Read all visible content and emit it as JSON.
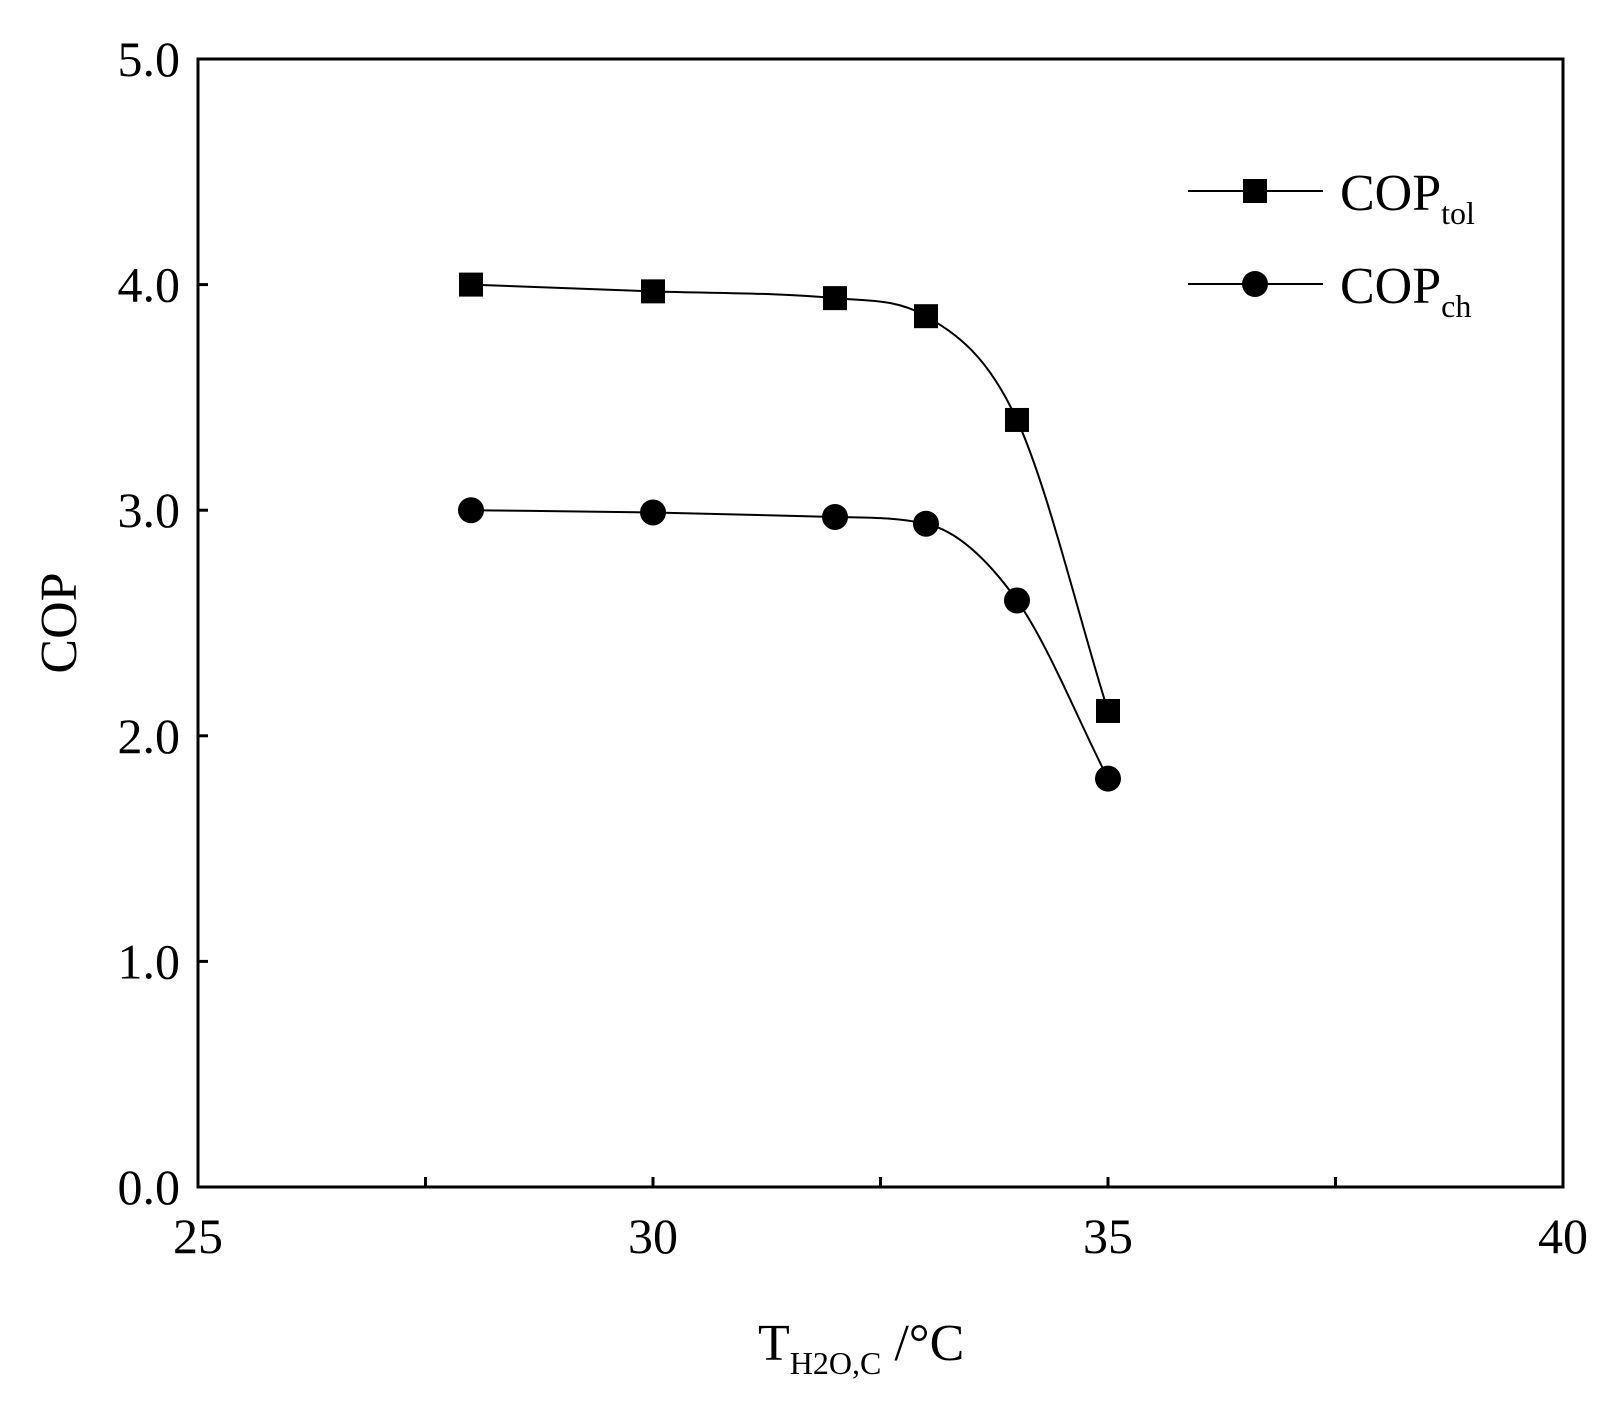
{
  "chart_data": {
    "type": "line",
    "title": "",
    "xlabel": {
      "main": "T",
      "subscript": "H2O,C",
      "suffix": " /°C"
    },
    "ylabel": "COP",
    "xlim": [
      25,
      40
    ],
    "ylim": [
      0,
      5
    ],
    "x_ticks": [
      "25",
      "30",
      "35",
      "40"
    ],
    "y_ticks": [
      "0.0",
      "1.0",
      "2.0",
      "3.0",
      "4.0",
      "5.0"
    ],
    "grid": false,
    "legend_position": "top-right",
    "series": [
      {
        "name": "COP_tol",
        "label_main": "COP",
        "label_sub": "tol",
        "marker": "square",
        "color": "#000000",
        "x": [
          28,
          30,
          32,
          33,
          34,
          35
        ],
        "y": [
          4.0,
          3.97,
          3.94,
          3.86,
          3.4,
          2.11
        ]
      },
      {
        "name": "COP_ch",
        "label_main": "COP",
        "label_sub": "ch",
        "marker": "circle",
        "color": "#000000",
        "x": [
          28,
          30,
          32,
          33,
          34,
          35
        ],
        "y": [
          3.0,
          2.99,
          2.97,
          2.94,
          2.6,
          1.81
        ]
      }
    ]
  }
}
